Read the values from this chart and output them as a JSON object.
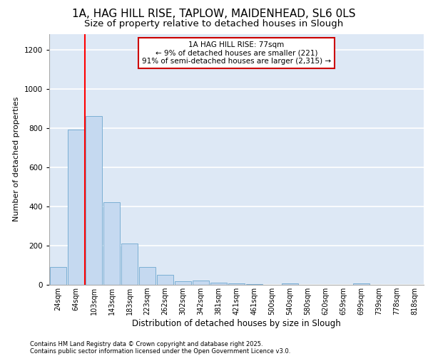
{
  "title_line1": "1A, HAG HILL RISE, TAPLOW, MAIDENHEAD, SL6 0LS",
  "title_line2": "Size of property relative to detached houses in Slough",
  "xlabel": "Distribution of detached houses by size in Slough",
  "ylabel": "Number of detached properties",
  "bar_labels": [
    "24sqm",
    "64sqm",
    "103sqm",
    "143sqm",
    "183sqm",
    "223sqm",
    "262sqm",
    "302sqm",
    "342sqm",
    "381sqm",
    "421sqm",
    "461sqm",
    "500sqm",
    "540sqm",
    "580sqm",
    "620sqm",
    "659sqm",
    "699sqm",
    "739sqm",
    "778sqm",
    "818sqm"
  ],
  "bar_values": [
    90,
    790,
    860,
    420,
    210,
    90,
    50,
    18,
    20,
    12,
    8,
    3,
    0,
    8,
    0,
    0,
    0,
    8,
    0,
    0,
    0
  ],
  "bar_color": "#c5d9f0",
  "bar_edge_color": "#7bafd4",
  "background_color": "#dde8f5",
  "grid_color": "#ffffff",
  "red_line_x": 1.5,
  "annotation_text": "1A HAG HILL RISE: 77sqm\n← 9% of detached houses are smaller (221)\n91% of semi-detached houses are larger (2,315) →",
  "annotation_box_color": "#ffffff",
  "annotation_box_edge": "#cc0000",
  "footer_line1": "Contains HM Land Registry data © Crown copyright and database right 2025.",
  "footer_line2": "Contains public sector information licensed under the Open Government Licence v3.0.",
  "ylim": [
    0,
    1280
  ],
  "yticks": [
    0,
    200,
    400,
    600,
    800,
    1000,
    1200
  ],
  "title1_fontsize": 11,
  "title2_fontsize": 9.5,
  "ylabel_fontsize": 8,
  "xlabel_fontsize": 8.5,
  "tick_fontsize": 7,
  "annot_fontsize": 7.5,
  "footer_fontsize": 6
}
